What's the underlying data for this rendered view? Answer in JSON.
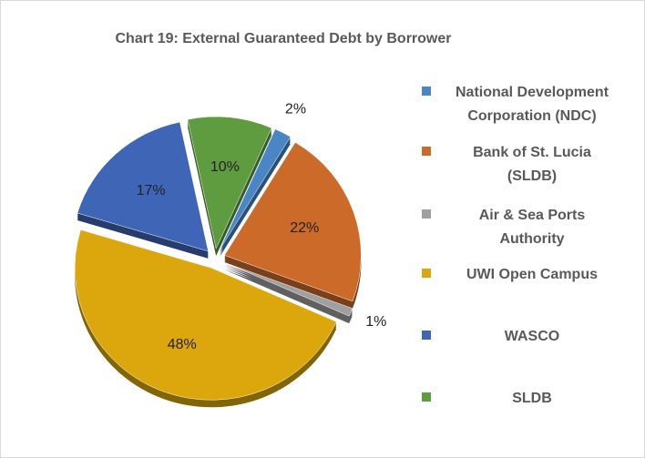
{
  "chart_data": {
    "type": "pie",
    "title": "Chart 19: External Guaranteed Debt by Borrower",
    "categories": [
      "National Development Corporation (NDC)",
      "Bank of St. Lucia (SLDB)",
      "Air & Sea Ports Authority",
      "UWI Open Campus",
      "WASCO",
      "SLDB"
    ],
    "values": [
      2,
      22,
      1,
      48,
      17,
      10
    ],
    "value_labels": [
      "2%",
      "22%",
      "1%",
      "48%",
      "17%",
      "10%"
    ],
    "colors": [
      "#4a86c5",
      "#cc6a2a",
      "#a0a0a0",
      "#dba70c",
      "#3f66b6",
      "#5f9b3f"
    ],
    "legend": "right"
  }
}
